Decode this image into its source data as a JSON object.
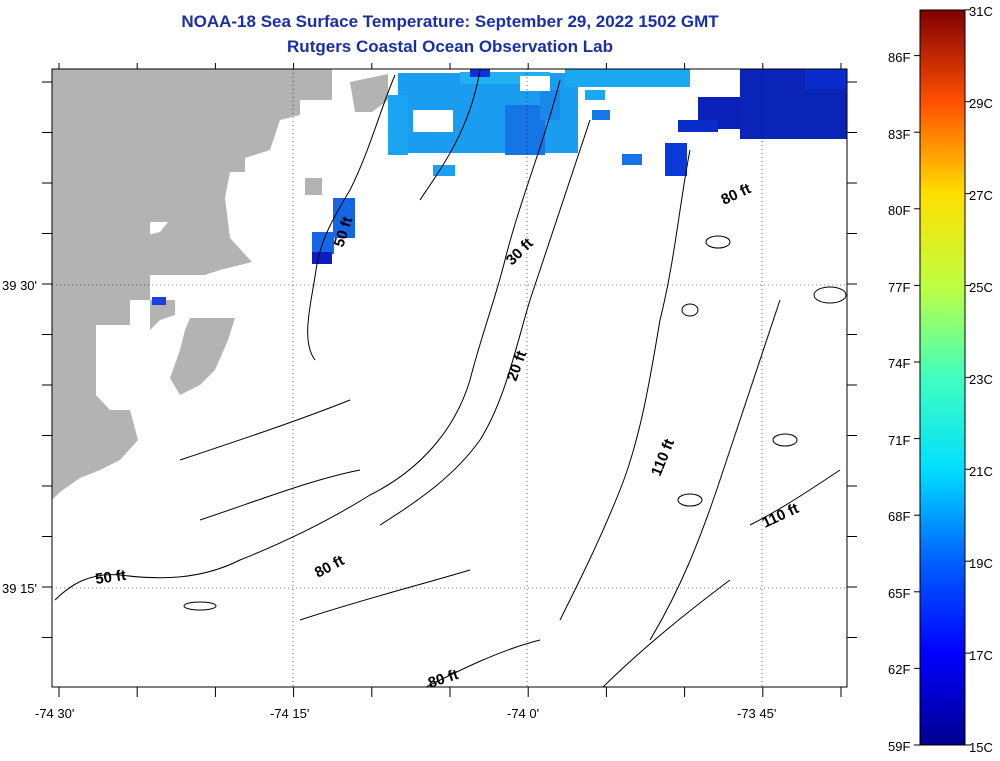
{
  "title": {
    "line1": "NOAA-18 Sea Surface Temperature:  September 29, 2022 1502 GMT",
    "line2": "Rutgers Coastal Ocean Observation Lab"
  },
  "map": {
    "y_axis_labels": [
      "39 30'",
      "39 15'"
    ],
    "x_axis_labels": [
      "-74 30'",
      "-74 15'",
      "-74 0'",
      "-73 45'"
    ],
    "depth_contour_labels": [
      "50 ft",
      "30 ft",
      "80 ft",
      "20 ft",
      "110 ft",
      "110 ft",
      "80 ft",
      "50 ft",
      "80 ft"
    ],
    "land_color": "#b3b3b3",
    "grid_style": "dotted"
  },
  "colorbar": {
    "fahrenheit_labels": [
      "86F",
      "83F",
      "80F",
      "77F",
      "74F",
      "71F",
      "68F",
      "65F",
      "62F",
      "59F"
    ],
    "celsius_labels": [
      "31C",
      "29C",
      "27C",
      "25C",
      "23C",
      "21C",
      "19C",
      "17C",
      "15C"
    ],
    "min_c": 15,
    "max_c": 31
  }
}
